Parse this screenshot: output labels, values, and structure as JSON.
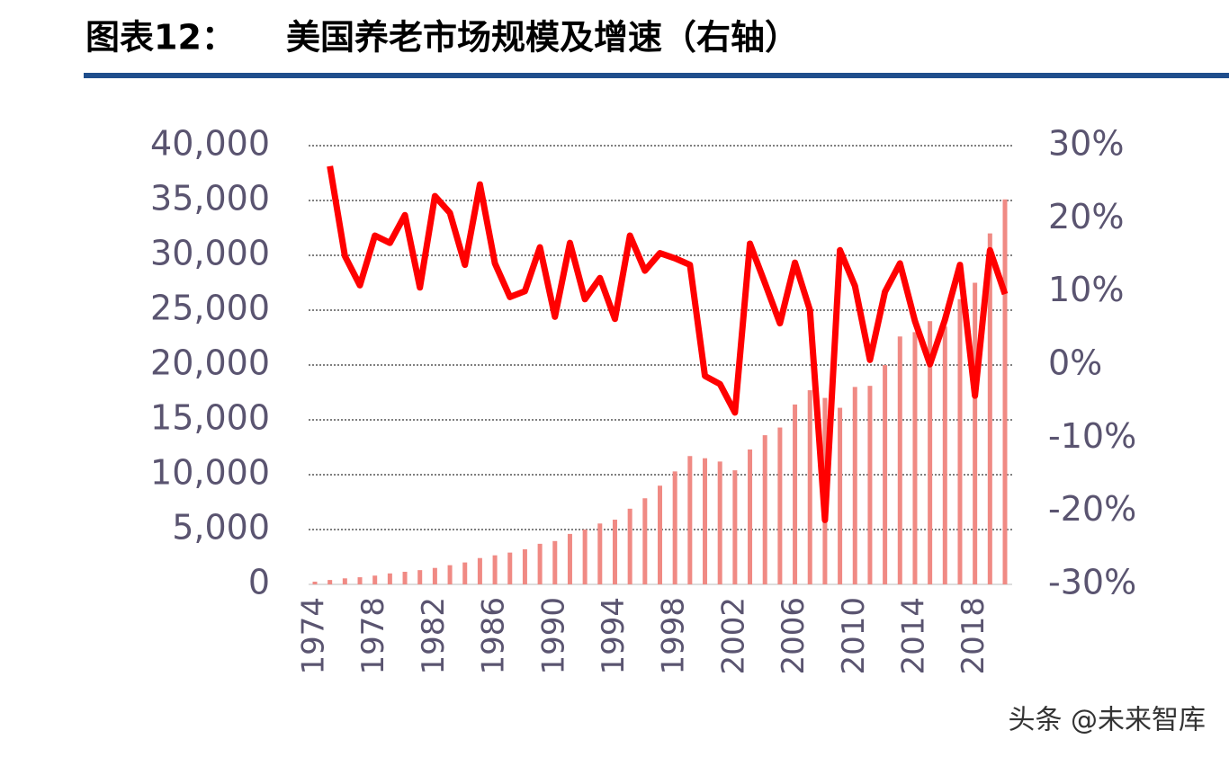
{
  "chart_data": {
    "type": "bar",
    "title": "图表12：",
    "subtitle": "美国养老市场规模及增速（右轴）",
    "watermark": "头条 @未来智库",
    "categories": [
      "1974",
      null,
      null,
      null,
      "1978",
      null,
      null,
      null,
      "1982",
      null,
      null,
      null,
      "1986",
      null,
      null,
      null,
      "1990",
      null,
      null,
      null,
      "1994",
      null,
      null,
      null,
      "1998",
      null,
      null,
      null,
      "2002",
      null,
      null,
      null,
      "2006",
      null,
      null,
      null,
      "2010",
      null,
      null,
      null,
      "2014",
      null,
      null,
      null,
      "2018",
      null,
      null
    ],
    "series": [
      {
        "type": "bar",
        "color": "#f08a84",
        "axis": "y",
        "values": [
          250,
          400,
          550,
          650,
          800,
          1000,
          1150,
          1300,
          1500,
          1750,
          2000,
          2400,
          2650,
          2900,
          3200,
          3700,
          3950,
          4600,
          5000,
          5550,
          5900,
          6900,
          7850,
          9000,
          10300,
          11700,
          11500,
          11200,
          10400,
          12300,
          13600,
          14300,
          16400,
          17700,
          17000,
          16100,
          18000,
          18100,
          20000,
          22600,
          23000,
          24000,
          23500,
          26000,
          27500,
          32000,
          35100
        ]
      },
      {
        "type": "line",
        "color": "#ff0000",
        "axis": "y2",
        "values": [
          null,
          27.2,
          14.9,
          10.9,
          17.7,
          16.7,
          20.5,
          10.6,
          23.1,
          20.8,
          13.7,
          24.7,
          13.9,
          9.3,
          10.1,
          16.1,
          6.6,
          16.7,
          9.0,
          11.9,
          6.3,
          17.7,
          12.9,
          15.3,
          14.6,
          13.7,
          -1.5,
          -2.6,
          -6.5,
          16.6,
          11.2,
          5.7,
          14.0,
          7.5,
          -21.2,
          15.7,
          10.8,
          0.7,
          10.0,
          13.9,
          6.0,
          0.1,
          6.2,
          13.7,
          -4.2,
          15.7,
          9.7
        ]
      }
    ],
    "ylim": [
      0,
      40000
    ],
    "yticks": [
      0,
      {
        "value": 5000,
        "label": "5,000"
      },
      {
        "value": 10000,
        "label": "10,000"
      },
      {
        "value": 15000,
        "label": "15,000"
      },
      {
        "value": 20000,
        "label": "20,000"
      },
      {
        "value": 25000,
        "label": "25,000"
      },
      {
        "value": 30000,
        "label": "30,000"
      },
      {
        "value": 35000,
        "label": "35,000"
      },
      {
        "value": 40000,
        "label": "40,000"
      }
    ],
    "y2lim": [
      -30,
      30
    ],
    "y2ticks": [
      {
        "value": -30,
        "label": "-30%"
      },
      {
        "value": -20,
        "label": "-20%"
      },
      {
        "value": -10,
        "label": "-10%"
      },
      {
        "value": 0,
        "label": "0%"
      },
      {
        "value": 10,
        "label": "10%"
      },
      {
        "value": 20,
        "label": "20%"
      },
      {
        "value": 30,
        "label": "30%"
      }
    ],
    "grid": true
  }
}
